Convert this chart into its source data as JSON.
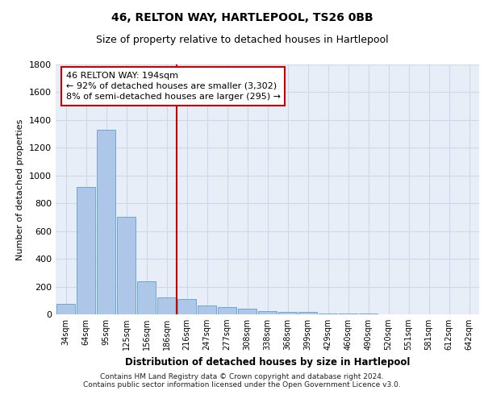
{
  "title_line1": "46, RELTON WAY, HARTLEPOOL, TS26 0BB",
  "title_line2": "Size of property relative to detached houses in Hartlepool",
  "xlabel": "Distribution of detached houses by size in Hartlepool",
  "ylabel": "Number of detached properties",
  "categories": [
    "34sqm",
    "64sqm",
    "95sqm",
    "125sqm",
    "156sqm",
    "186sqm",
    "216sqm",
    "247sqm",
    "277sqm",
    "308sqm",
    "338sqm",
    "368sqm",
    "399sqm",
    "429sqm",
    "460sqm",
    "490sqm",
    "520sqm",
    "551sqm",
    "581sqm",
    "612sqm",
    "642sqm"
  ],
  "values": [
    75,
    920,
    1330,
    700,
    240,
    120,
    110,
    65,
    55,
    40,
    25,
    20,
    20,
    5,
    5,
    5,
    0,
    0,
    0,
    0,
    0
  ],
  "bar_color": "#aec6e8",
  "bar_edge_color": "#5a9fd4",
  "property_line_x": 5.5,
  "annotation_text_line1": "46 RELTON WAY: 194sqm",
  "annotation_text_line2": "← 92% of detached houses are smaller (3,302)",
  "annotation_text_line3": "8% of semi-detached houses are larger (295) →",
  "annotation_box_color": "#ffffff",
  "annotation_box_edge": "#cc0000",
  "property_line_color": "#cc0000",
  "ylim": [
    0,
    1800
  ],
  "yticks": [
    0,
    200,
    400,
    600,
    800,
    1000,
    1200,
    1400,
    1600,
    1800
  ],
  "grid_color": "#d0d8e8",
  "background_color": "#e8eef8",
  "footer_line1": "Contains HM Land Registry data © Crown copyright and database right 2024.",
  "footer_line2": "Contains public sector information licensed under the Open Government Licence v3.0.",
  "title_fontsize": 10,
  "subtitle_fontsize": 9,
  "annotation_fontsize": 8,
  "footer_fontsize": 6.5
}
